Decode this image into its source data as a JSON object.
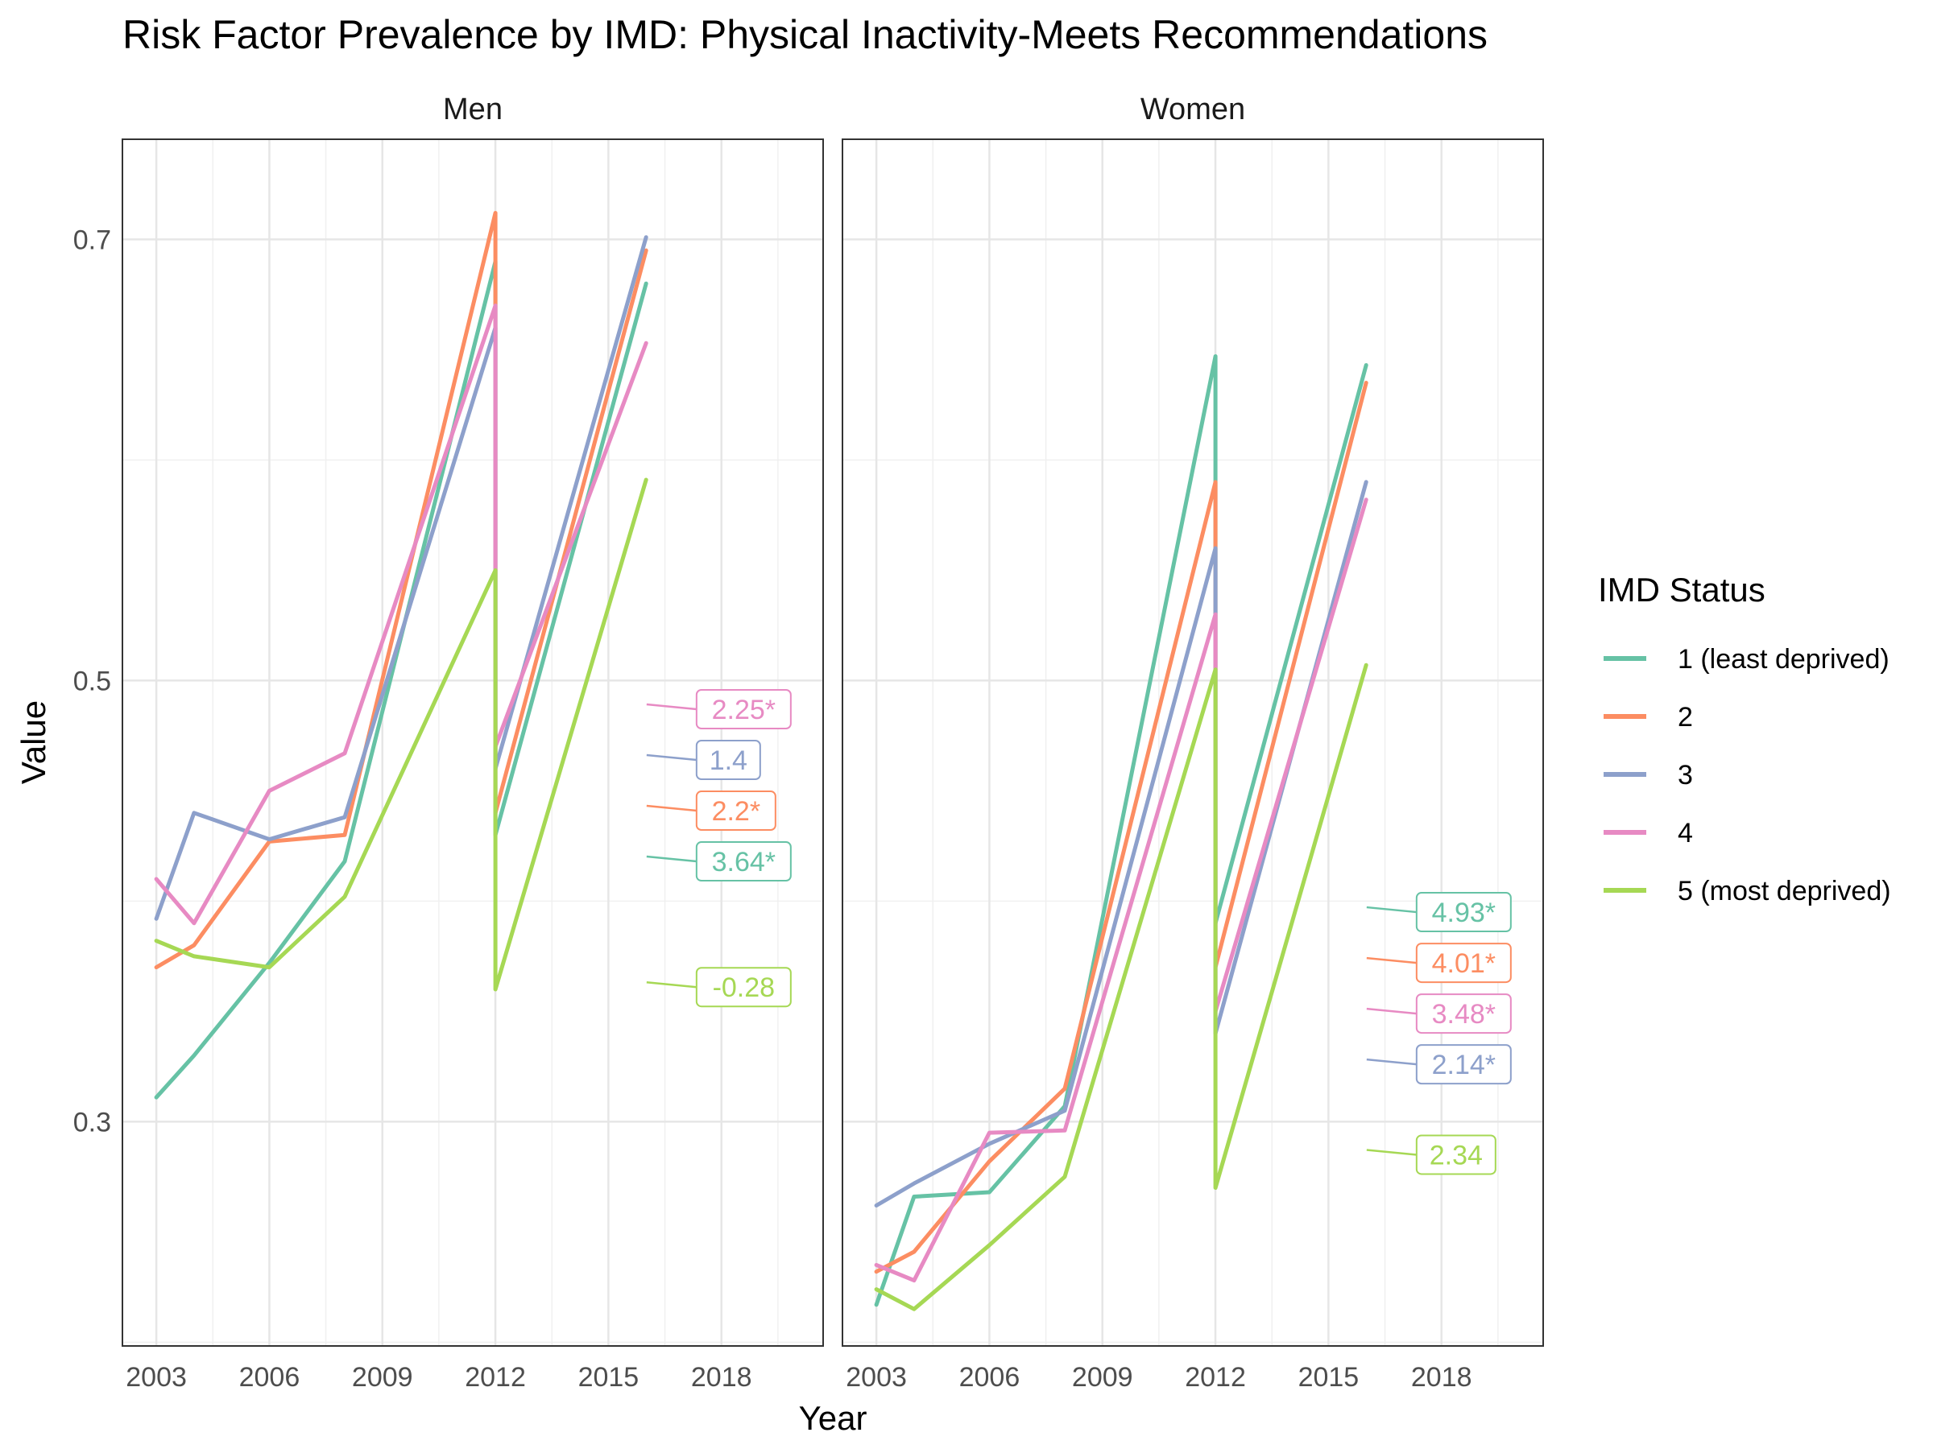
{
  "chart_data": {
    "type": "line",
    "title": "Risk Factor Prevalence by IMD: Physical Inactivity-Meets Recommendations",
    "xlabel": "Year",
    "ylabel": "Value",
    "x_ticks": [
      2003,
      2006,
      2009,
      2012,
      2015,
      2018
    ],
    "xlim": [
      2002.1,
      2020.7
    ],
    "y_ticks": [
      0.3,
      0.5,
      0.7
    ],
    "y_tick_labels": [
      "0.3",
      "0.5",
      "0.7"
    ],
    "ylim": [
      0.1983,
      0.7454
    ],
    "grid": true,
    "legend": {
      "title": "IMD Status",
      "position": "right",
      "entries": [
        "1 (least deprived)",
        "2",
        "3",
        "4",
        "5 (most deprived)"
      ]
    },
    "colors": [
      "#66C2A5",
      "#FC8D62",
      "#8DA0CB",
      "#E78AC3",
      "#A6D854"
    ],
    "panels": [
      {
        "name": "Men",
        "series": [
          {
            "name": "1 (least deprived)",
            "points": [
              [
                2003,
                0.311
              ],
              [
                2004,
                0.33
              ],
              [
                2006,
                0.372
              ],
              [
                2008,
                0.418
              ],
              [
                2012,
                0.69
              ],
              [
                2012,
                0.43
              ],
              [
                2016,
                0.68
              ]
            ]
          },
          {
            "name": "2",
            "points": [
              [
                2003,
                0.37
              ],
              [
                2004,
                0.38
              ],
              [
                2006,
                0.427
              ],
              [
                2008,
                0.43
              ],
              [
                2012,
                0.712
              ],
              [
                2012,
                0.44
              ],
              [
                2016,
                0.695
              ]
            ]
          },
          {
            "name": "3",
            "points": [
              [
                2003,
                0.392
              ],
              [
                2004,
                0.44
              ],
              [
                2006,
                0.428
              ],
              [
                2008,
                0.438
              ],
              [
                2012,
                0.66
              ],
              [
                2012,
                0.46
              ],
              [
                2016,
                0.701
              ]
            ]
          },
          {
            "name": "4",
            "points": [
              [
                2003,
                0.41
              ],
              [
                2004,
                0.39
              ],
              [
                2006,
                0.45
              ],
              [
                2008,
                0.467
              ],
              [
                2012,
                0.67
              ],
              [
                2012,
                0.47
              ],
              [
                2016,
                0.653
              ]
            ]
          },
          {
            "name": "5 (most deprived)",
            "points": [
              [
                2003,
                0.382
              ],
              [
                2004,
                0.375
              ],
              [
                2006,
                0.37
              ],
              [
                2008,
                0.402
              ],
              [
                2012,
                0.55
              ],
              [
                2012,
                0.36
              ],
              [
                2016,
                0.591
              ]
            ]
          }
        ],
        "labels": [
          {
            "series": "4",
            "text": "2.25*",
            "x": 2016.1,
            "y": 0.487
          },
          {
            "series": "3",
            "text": "1.4",
            "x": 2016.1,
            "y": 0.464
          },
          {
            "series": "2",
            "text": "2.2*",
            "x": 2016.1,
            "y": 0.441
          },
          {
            "series": "1 (least deprived)",
            "text": "3.64*",
            "x": 2016.1,
            "y": 0.418
          },
          {
            "series": "5 (most deprived)",
            "text": "-0.28",
            "x": 2016.1,
            "y": 0.361
          }
        ]
      },
      {
        "name": "Women",
        "series": [
          {
            "name": "1 (least deprived)",
            "points": [
              [
                2003,
                0.217
              ],
              [
                2004,
                0.266
              ],
              [
                2006,
                0.268
              ],
              [
                2008,
                0.307
              ],
              [
                2012,
                0.647
              ],
              [
                2012,
                0.39
              ],
              [
                2016,
                0.643
              ]
            ]
          },
          {
            "name": "2",
            "points": [
              [
                2003,
                0.232
              ],
              [
                2004,
                0.241
              ],
              [
                2006,
                0.282
              ],
              [
                2008,
                0.315
              ],
              [
                2012,
                0.59
              ],
              [
                2012,
                0.37
              ],
              [
                2016,
                0.635
              ]
            ]
          },
          {
            "name": "3",
            "points": [
              [
                2003,
                0.262
              ],
              [
                2004,
                0.272
              ],
              [
                2006,
                0.29
              ],
              [
                2008,
                0.305
              ],
              [
                2012,
                0.56
              ],
              [
                2012,
                0.34
              ],
              [
                2016,
                0.59
              ]
            ]
          },
          {
            "name": "4",
            "points": [
              [
                2003,
                0.235
              ],
              [
                2004,
                0.228
              ],
              [
                2006,
                0.295
              ],
              [
                2008,
                0.296
              ],
              [
                2012,
                0.53
              ],
              [
                2012,
                0.35
              ],
              [
                2016,
                0.582
              ]
            ]
          },
          {
            "name": "5 (most deprived)",
            "points": [
              [
                2003,
                0.224
              ],
              [
                2004,
                0.215
              ],
              [
                2006,
                0.244
              ],
              [
                2008,
                0.275
              ],
              [
                2012,
                0.505
              ],
              [
                2012,
                0.27
              ],
              [
                2016,
                0.507
              ]
            ]
          }
        ],
        "labels": [
          {
            "series": "1 (least deprived)",
            "text": "4.93*",
            "x": 2016.1,
            "y": 0.395
          },
          {
            "series": "2",
            "text": "4.01*",
            "x": 2016.1,
            "y": 0.372
          },
          {
            "series": "4",
            "text": "3.48*",
            "x": 2016.1,
            "y": 0.349
          },
          {
            "series": "3",
            "text": "2.14*",
            "x": 2016.1,
            "y": 0.326
          },
          {
            "series": "5 (most deprived)",
            "text": "2.34",
            "x": 2016.1,
            "y": 0.285
          }
        ]
      }
    ]
  }
}
